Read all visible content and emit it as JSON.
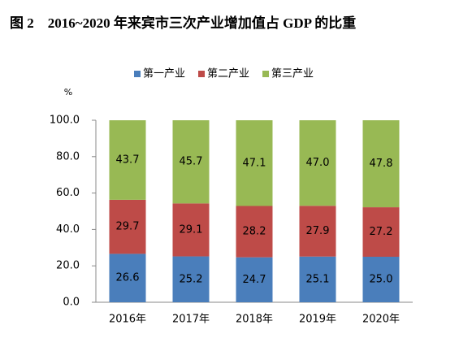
{
  "chart_data": {
    "type": "stacked-bar",
    "title": "图 2　2016~2020 年来宾市三次产业增加值占 GDP 的比重",
    "ylabel": "%",
    "categories": [
      "2016年",
      "2017年",
      "2018年",
      "2019年",
      "2020年"
    ],
    "series": [
      {
        "name": "第一产业",
        "color": "#4a7ebb",
        "values": [
          26.6,
          25.2,
          24.7,
          25.1,
          25.0
        ],
        "value_labels": [
          "26.6",
          "25.2",
          "24.7",
          "25.1",
          "25.0"
        ]
      },
      {
        "name": "第二产业",
        "color": "#be4b48",
        "values": [
          29.7,
          29.1,
          28.2,
          27.9,
          27.2
        ],
        "value_labels": [
          "29.7",
          "29.1",
          "28.2",
          "27.9",
          "27.2"
        ]
      },
      {
        "name": "第三产业",
        "color": "#98b954",
        "values": [
          43.7,
          45.7,
          47.1,
          47.0,
          47.8
        ],
        "value_labels": [
          "43.7",
          "45.7",
          "47.1",
          "47.0",
          "47.8"
        ]
      }
    ],
    "ylim": [
      0,
      100
    ],
    "yticks": [
      {
        "value": 0,
        "label": "0.0"
      },
      {
        "value": 20,
        "label": "20.0"
      },
      {
        "value": 40,
        "label": "40.0"
      },
      {
        "value": 60,
        "label": "60.0"
      },
      {
        "value": 80,
        "label": "80.0"
      },
      {
        "value": 100,
        "label": "100.0"
      }
    ],
    "legend": "top"
  }
}
